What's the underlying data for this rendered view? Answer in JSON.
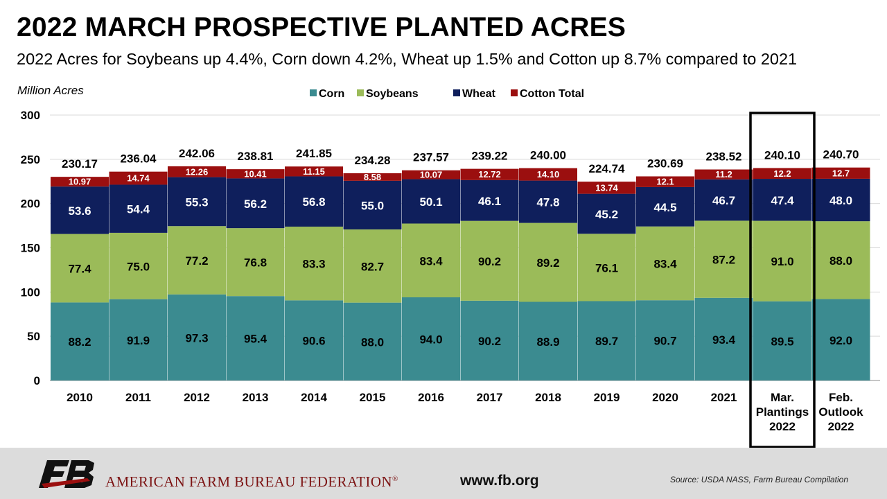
{
  "header": {
    "title": "2022 MARCH PROSPECTIVE PLANTED ACRES",
    "subtitle": "2022 Acres for Soybeans up 4.4%, Corn down 4.2%, Wheat up 1.5% and Cotton up 8.7% compared to 2021"
  },
  "chart_data": {
    "type": "bar",
    "stacked": true,
    "title": "2022 MARCH PROSPECTIVE PLANTED ACRES",
    "subtitle": "2022 Acres for Soybeans up 4.4%, Corn down 4.2%, Wheat up 1.5% and Cotton up 8.7% compared to 2021",
    "ylabel": "Million Acres",
    "xlabel": "",
    "ylim": [
      0,
      300
    ],
    "yticks": [
      0,
      50,
      100,
      150,
      200,
      250,
      300
    ],
    "grid": true,
    "legend_position": "top",
    "categories": [
      [
        "2010"
      ],
      [
        "2011"
      ],
      [
        "2012"
      ],
      [
        "2013"
      ],
      [
        "2014"
      ],
      [
        "2015"
      ],
      [
        "2016"
      ],
      [
        "2017"
      ],
      [
        "2018"
      ],
      [
        "2019"
      ],
      [
        "2020"
      ],
      [
        "2021"
      ],
      [
        "Mar.",
        "Plantings",
        "2022"
      ],
      [
        "Feb.",
        "Outlook",
        "2022"
      ]
    ],
    "highlighted_category_index": 12,
    "series": [
      {
        "name": "Corn",
        "color": "#3b8b90",
        "label_color": "#000000",
        "values": [
          88.2,
          91.9,
          97.3,
          95.4,
          90.6,
          88.0,
          94.0,
          90.2,
          88.9,
          89.7,
          90.7,
          93.4,
          89.5,
          92.0
        ],
        "labels": [
          "88.2",
          "91.9",
          "97.3",
          "95.4",
          "90.6",
          "88.0",
          "94.0",
          "90.2",
          "88.9",
          "89.7",
          "90.7",
          "93.4",
          "89.5",
          "92.0"
        ]
      },
      {
        "name": "Soybeans",
        "color": "#9bbb59",
        "label_color": "#000000",
        "values": [
          77.4,
          75.0,
          77.2,
          76.8,
          83.3,
          82.7,
          83.4,
          90.2,
          89.2,
          76.1,
          83.4,
          87.2,
          91.0,
          88.0
        ],
        "labels": [
          "77.4",
          "75.0",
          "77.2",
          "76.8",
          "83.3",
          "82.7",
          "83.4",
          "90.2",
          "89.2",
          "76.1",
          "83.4",
          "87.2",
          "91.0",
          "88.0"
        ]
      },
      {
        "name": "Wheat",
        "color": "#0f1f5c",
        "label_color": "#ffffff",
        "values": [
          53.6,
          54.4,
          55.3,
          56.2,
          56.8,
          55.0,
          50.1,
          46.1,
          47.8,
          45.2,
          44.5,
          46.7,
          47.4,
          48.0
        ],
        "labels": [
          "53.6",
          "54.4",
          "55.3",
          "56.2",
          "56.8",
          "55.0",
          "50.1",
          "46.1",
          "47.8",
          "45.2",
          "44.5",
          "46.7",
          "47.4",
          "48.0"
        ]
      },
      {
        "name": "Cotton",
        "color": "#9b0f0f",
        "label_color": "#ffffff",
        "values": [
          10.97,
          14.74,
          12.26,
          10.41,
          11.15,
          8.58,
          10.07,
          12.72,
          14.1,
          13.74,
          12.1,
          11.2,
          12.2,
          12.7
        ],
        "labels": [
          "10.97",
          "14.74",
          "12.26",
          "10.41",
          "11.15",
          "8.58",
          "10.07",
          "12.72",
          "14.10",
          "13.74",
          "12.1",
          "11.2",
          "12.2",
          "12.7"
        ]
      }
    ],
    "total_series_name": "Total",
    "totals": [
      "230.17",
      "236.04",
      "242.06",
      "238.81",
      "241.85",
      "234.28",
      "237.57",
      "239.22",
      "240.00",
      "224.74",
      "230.69",
      "238.52",
      "240.10",
      "240.70"
    ]
  },
  "footer": {
    "org_name": "AMERICAN FARM BUREAU FEDERATION",
    "org_mark": "®",
    "logo_icon": "farm-bureau-logo-icon",
    "url": "www.fb.org",
    "source": "Source:  USDA NASS, Farm Bureau Compilation",
    "background_color": "#dcdcdc",
    "org_color": "#7d1515"
  }
}
